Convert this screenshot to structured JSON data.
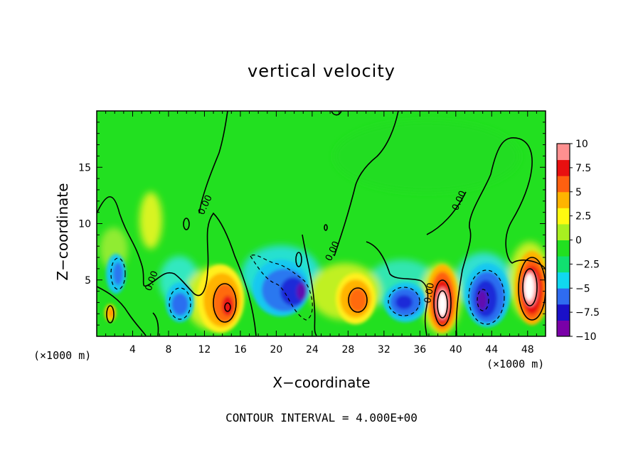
{
  "chart_data": {
    "type": "heatmap",
    "title": "vertical velocity",
    "xlabel": "X−coordinate",
    "ylabel": "Z−coordinate",
    "x_unit_left": "(×1000 m)",
    "x_unit_right": "(×1000 m)",
    "contour_interval_note": "CONTOUR INTERVAL = 4.000E+00",
    "xlim": [
      0,
      50
    ],
    "ylim": [
      0,
      20
    ],
    "x_ticks": [
      "4",
      "8",
      "12",
      "16",
      "20",
      "24",
      "28",
      "32",
      "36",
      "40",
      "44",
      "48"
    ],
    "x_tick_values": [
      4,
      8,
      12,
      16,
      20,
      24,
      28,
      32,
      36,
      40,
      44,
      48
    ],
    "y_ticks": [
      "5",
      "10",
      "15"
    ],
    "y_tick_values": [
      5,
      10,
      15
    ],
    "contour_labels": [
      "0.00",
      "0.00",
      "0.00",
      "0.00",
      "0.00"
    ],
    "colorbar": {
      "min": -10,
      "max": 10,
      "labels": [
        "10",
        "7.5",
        "5",
        "2.5",
        "0",
        "−2.5",
        "−5",
        "−7.5",
        "−10"
      ],
      "label_values": [
        10,
        7.5,
        5,
        2.5,
        0,
        -2.5,
        -5,
        -7.5,
        -10
      ],
      "colors": [
        "#7a00a8",
        "#1a10c8",
        "#2f6cf0",
        "#10d8f0",
        "#10e070",
        "#22e020",
        "#a8f020",
        "#fffa10",
        "#ffb400",
        "#ff6010",
        "#e81010",
        "#ff9090"
      ]
    },
    "features": [
      {
        "kind": "updraft",
        "x": 2.5,
        "z": 2.0,
        "value": 5
      },
      {
        "kind": "downdraft",
        "x": 2.5,
        "z": 5.5,
        "value": -5
      },
      {
        "kind": "updraft",
        "x": 5.8,
        "z": 10.0,
        "value": 3
      },
      {
        "kind": "downdraft",
        "x": 9.3,
        "z": 3.0,
        "value": -6
      },
      {
        "kind": "updraft",
        "x": 14.5,
        "z": 3.5,
        "value": 7.5
      },
      {
        "kind": "downdraft",
        "x": 20.5,
        "z": 5.0,
        "value": -7
      },
      {
        "kind": "downdraft",
        "x": 22.5,
        "z": 3.5,
        "value": -9
      },
      {
        "kind": "updraft",
        "x": 29.5,
        "z": 3.5,
        "value": 7
      },
      {
        "kind": "downdraft",
        "x": 33.0,
        "z": 3.0,
        "value": -8
      },
      {
        "kind": "updraft",
        "x": 38.3,
        "z": 3.2,
        "value": 10
      },
      {
        "kind": "downdraft",
        "x": 42.3,
        "z": 4.0,
        "value": -9
      },
      {
        "kind": "updraft",
        "x": 48.0,
        "z": 5.0,
        "value": 10
      }
    ]
  }
}
